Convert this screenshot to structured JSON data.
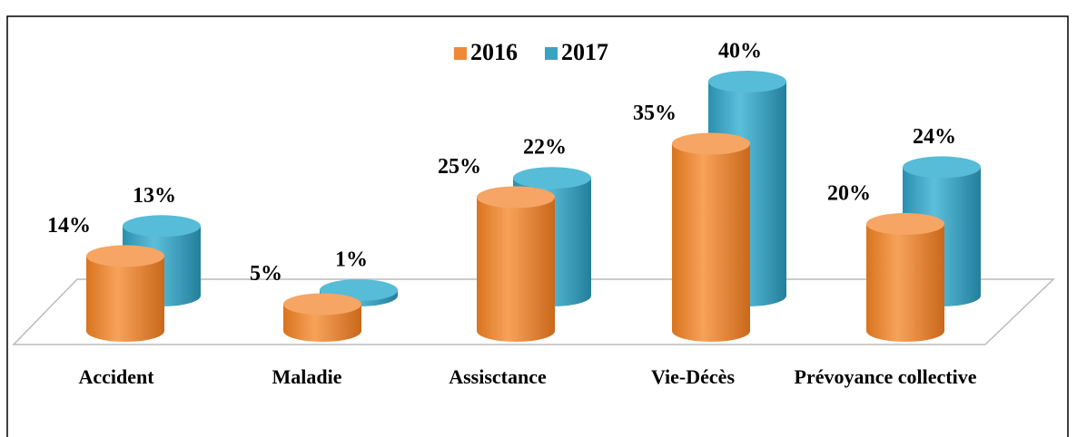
{
  "chart_data": {
    "type": "bar3d",
    "categories": [
      "Accident",
      "Maladie",
      "Assisctance",
      "Vie-Décès",
      "Prévoyance collective"
    ],
    "series": [
      {
        "name": "2016",
        "color": "#ee8a35",
        "values": [
          14,
          5,
          25,
          35,
          20
        ],
        "value_labels": [
          "14%",
          "5%",
          "25%",
          "35%",
          "20%"
        ]
      },
      {
        "name": "2017",
        "color": "#3aa3c2",
        "values": [
          13,
          1,
          22,
          40,
          24
        ],
        "value_labels": [
          "13%",
          "1%",
          "22%",
          "40%",
          "24%"
        ]
      }
    ],
    "ylim": [
      0,
      45
    ],
    "legend": "top"
  }
}
